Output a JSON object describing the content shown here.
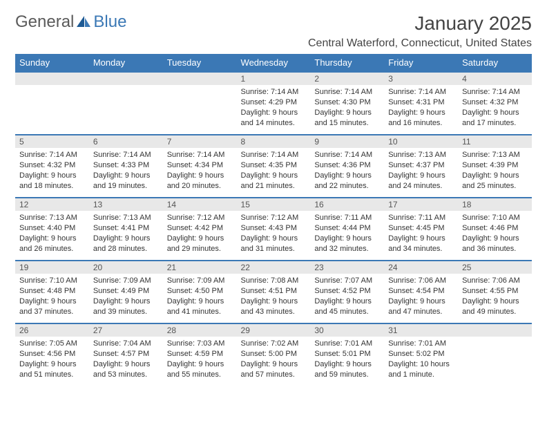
{
  "logo": {
    "word1": "General",
    "word2": "Blue"
  },
  "title": "January 2025",
  "location": "Central Waterford, Connecticut, United States",
  "styling": {
    "header_bg": "#3b78b5",
    "header_text_color": "#ffffff",
    "daynum_bg": "#e8e8e8",
    "border_color": "#3b78b5",
    "page_bg": "#ffffff",
    "body_text_color": "#333333",
    "logo_gray": "#5a5a5a",
    "logo_blue": "#3b78b5",
    "month_fontsize": 28,
    "location_fontsize": 16,
    "header_fontsize": 13,
    "daynum_fontsize": 12,
    "detail_fontsize": 11
  },
  "weekdays": [
    "Sunday",
    "Monday",
    "Tuesday",
    "Wednesday",
    "Thursday",
    "Friday",
    "Saturday"
  ],
  "weeks": [
    {
      "days": [
        {
          "num": "",
          "sunrise": "",
          "sunset": "",
          "daylight1": "",
          "daylight2": ""
        },
        {
          "num": "",
          "sunrise": "",
          "sunset": "",
          "daylight1": "",
          "daylight2": ""
        },
        {
          "num": "",
          "sunrise": "",
          "sunset": "",
          "daylight1": "",
          "daylight2": ""
        },
        {
          "num": "1",
          "sunrise": "Sunrise: 7:14 AM",
          "sunset": "Sunset: 4:29 PM",
          "daylight1": "Daylight: 9 hours",
          "daylight2": "and 14 minutes."
        },
        {
          "num": "2",
          "sunrise": "Sunrise: 7:14 AM",
          "sunset": "Sunset: 4:30 PM",
          "daylight1": "Daylight: 9 hours",
          "daylight2": "and 15 minutes."
        },
        {
          "num": "3",
          "sunrise": "Sunrise: 7:14 AM",
          "sunset": "Sunset: 4:31 PM",
          "daylight1": "Daylight: 9 hours",
          "daylight2": "and 16 minutes."
        },
        {
          "num": "4",
          "sunrise": "Sunrise: 7:14 AM",
          "sunset": "Sunset: 4:32 PM",
          "daylight1": "Daylight: 9 hours",
          "daylight2": "and 17 minutes."
        }
      ]
    },
    {
      "days": [
        {
          "num": "5",
          "sunrise": "Sunrise: 7:14 AM",
          "sunset": "Sunset: 4:32 PM",
          "daylight1": "Daylight: 9 hours",
          "daylight2": "and 18 minutes."
        },
        {
          "num": "6",
          "sunrise": "Sunrise: 7:14 AM",
          "sunset": "Sunset: 4:33 PM",
          "daylight1": "Daylight: 9 hours",
          "daylight2": "and 19 minutes."
        },
        {
          "num": "7",
          "sunrise": "Sunrise: 7:14 AM",
          "sunset": "Sunset: 4:34 PM",
          "daylight1": "Daylight: 9 hours",
          "daylight2": "and 20 minutes."
        },
        {
          "num": "8",
          "sunrise": "Sunrise: 7:14 AM",
          "sunset": "Sunset: 4:35 PM",
          "daylight1": "Daylight: 9 hours",
          "daylight2": "and 21 minutes."
        },
        {
          "num": "9",
          "sunrise": "Sunrise: 7:14 AM",
          "sunset": "Sunset: 4:36 PM",
          "daylight1": "Daylight: 9 hours",
          "daylight2": "and 22 minutes."
        },
        {
          "num": "10",
          "sunrise": "Sunrise: 7:13 AM",
          "sunset": "Sunset: 4:37 PM",
          "daylight1": "Daylight: 9 hours",
          "daylight2": "and 24 minutes."
        },
        {
          "num": "11",
          "sunrise": "Sunrise: 7:13 AM",
          "sunset": "Sunset: 4:39 PM",
          "daylight1": "Daylight: 9 hours",
          "daylight2": "and 25 minutes."
        }
      ]
    },
    {
      "days": [
        {
          "num": "12",
          "sunrise": "Sunrise: 7:13 AM",
          "sunset": "Sunset: 4:40 PM",
          "daylight1": "Daylight: 9 hours",
          "daylight2": "and 26 minutes."
        },
        {
          "num": "13",
          "sunrise": "Sunrise: 7:13 AM",
          "sunset": "Sunset: 4:41 PM",
          "daylight1": "Daylight: 9 hours",
          "daylight2": "and 28 minutes."
        },
        {
          "num": "14",
          "sunrise": "Sunrise: 7:12 AM",
          "sunset": "Sunset: 4:42 PM",
          "daylight1": "Daylight: 9 hours",
          "daylight2": "and 29 minutes."
        },
        {
          "num": "15",
          "sunrise": "Sunrise: 7:12 AM",
          "sunset": "Sunset: 4:43 PM",
          "daylight1": "Daylight: 9 hours",
          "daylight2": "and 31 minutes."
        },
        {
          "num": "16",
          "sunrise": "Sunrise: 7:11 AM",
          "sunset": "Sunset: 4:44 PM",
          "daylight1": "Daylight: 9 hours",
          "daylight2": "and 32 minutes."
        },
        {
          "num": "17",
          "sunrise": "Sunrise: 7:11 AM",
          "sunset": "Sunset: 4:45 PM",
          "daylight1": "Daylight: 9 hours",
          "daylight2": "and 34 minutes."
        },
        {
          "num": "18",
          "sunrise": "Sunrise: 7:10 AM",
          "sunset": "Sunset: 4:46 PM",
          "daylight1": "Daylight: 9 hours",
          "daylight2": "and 36 minutes."
        }
      ]
    },
    {
      "days": [
        {
          "num": "19",
          "sunrise": "Sunrise: 7:10 AM",
          "sunset": "Sunset: 4:48 PM",
          "daylight1": "Daylight: 9 hours",
          "daylight2": "and 37 minutes."
        },
        {
          "num": "20",
          "sunrise": "Sunrise: 7:09 AM",
          "sunset": "Sunset: 4:49 PM",
          "daylight1": "Daylight: 9 hours",
          "daylight2": "and 39 minutes."
        },
        {
          "num": "21",
          "sunrise": "Sunrise: 7:09 AM",
          "sunset": "Sunset: 4:50 PM",
          "daylight1": "Daylight: 9 hours",
          "daylight2": "and 41 minutes."
        },
        {
          "num": "22",
          "sunrise": "Sunrise: 7:08 AM",
          "sunset": "Sunset: 4:51 PM",
          "daylight1": "Daylight: 9 hours",
          "daylight2": "and 43 minutes."
        },
        {
          "num": "23",
          "sunrise": "Sunrise: 7:07 AM",
          "sunset": "Sunset: 4:52 PM",
          "daylight1": "Daylight: 9 hours",
          "daylight2": "and 45 minutes."
        },
        {
          "num": "24",
          "sunrise": "Sunrise: 7:06 AM",
          "sunset": "Sunset: 4:54 PM",
          "daylight1": "Daylight: 9 hours",
          "daylight2": "and 47 minutes."
        },
        {
          "num": "25",
          "sunrise": "Sunrise: 7:06 AM",
          "sunset": "Sunset: 4:55 PM",
          "daylight1": "Daylight: 9 hours",
          "daylight2": "and 49 minutes."
        }
      ]
    },
    {
      "days": [
        {
          "num": "26",
          "sunrise": "Sunrise: 7:05 AM",
          "sunset": "Sunset: 4:56 PM",
          "daylight1": "Daylight: 9 hours",
          "daylight2": "and 51 minutes."
        },
        {
          "num": "27",
          "sunrise": "Sunrise: 7:04 AM",
          "sunset": "Sunset: 4:57 PM",
          "daylight1": "Daylight: 9 hours",
          "daylight2": "and 53 minutes."
        },
        {
          "num": "28",
          "sunrise": "Sunrise: 7:03 AM",
          "sunset": "Sunset: 4:59 PM",
          "daylight1": "Daylight: 9 hours",
          "daylight2": "and 55 minutes."
        },
        {
          "num": "29",
          "sunrise": "Sunrise: 7:02 AM",
          "sunset": "Sunset: 5:00 PM",
          "daylight1": "Daylight: 9 hours",
          "daylight2": "and 57 minutes."
        },
        {
          "num": "30",
          "sunrise": "Sunrise: 7:01 AM",
          "sunset": "Sunset: 5:01 PM",
          "daylight1": "Daylight: 9 hours",
          "daylight2": "and 59 minutes."
        },
        {
          "num": "31",
          "sunrise": "Sunrise: 7:01 AM",
          "sunset": "Sunset: 5:02 PM",
          "daylight1": "Daylight: 10 hours",
          "daylight2": "and 1 minute."
        },
        {
          "num": "",
          "sunrise": "",
          "sunset": "",
          "daylight1": "",
          "daylight2": ""
        }
      ]
    }
  ]
}
